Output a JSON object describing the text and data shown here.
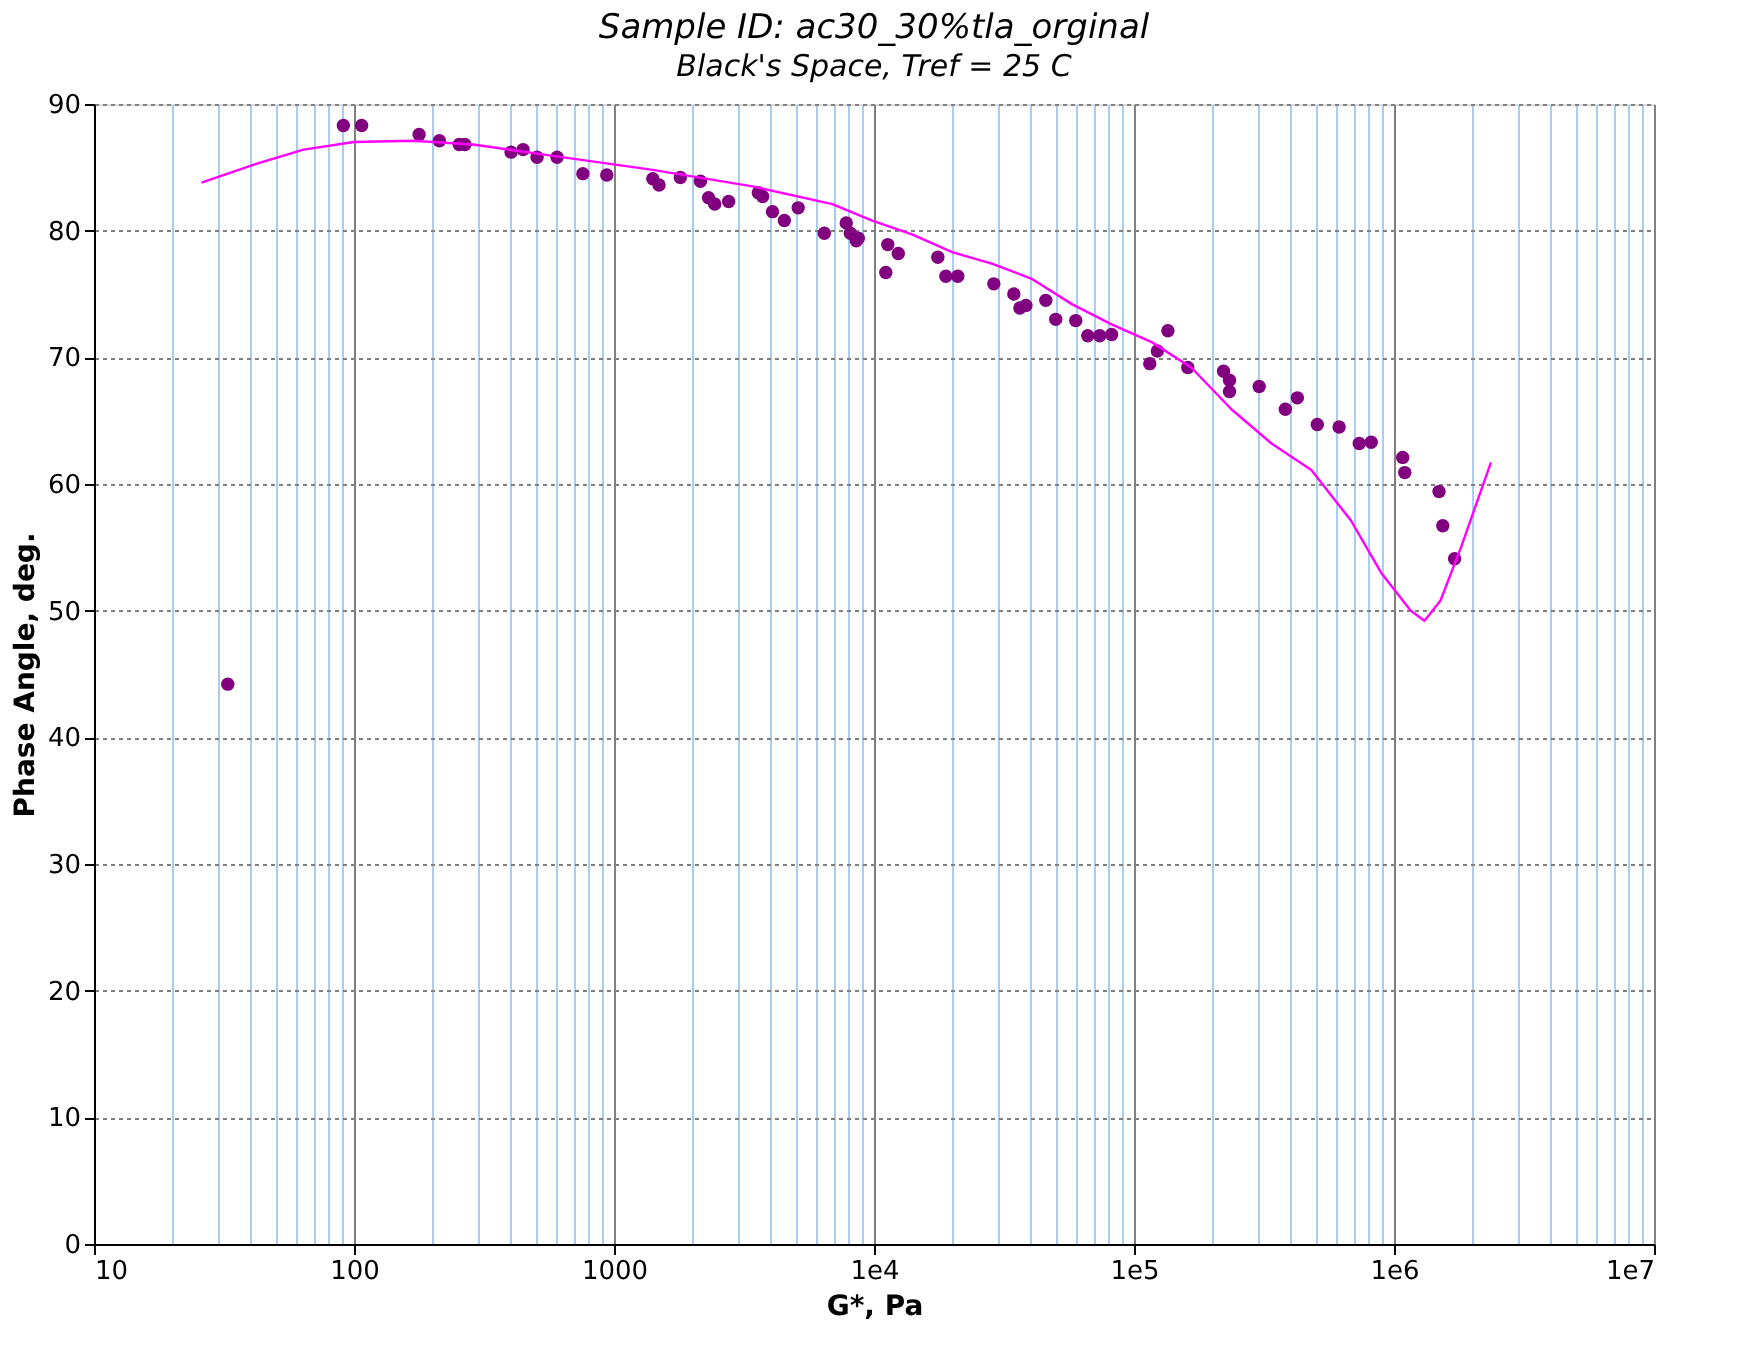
{
  "chart_data": {
    "type": "scatter",
    "title": "Sample ID: ac30_30%tla_orginal",
    "subtitle": "Black's Space, Tref = 25 C",
    "xlabel": "G*, Pa",
    "ylabel": "Phase Angle, deg.",
    "log": "x",
    "grid": true,
    "marker": "circle",
    "xlim": [
      10,
      10000000
    ],
    "ylim": [
      0,
      90
    ],
    "yticks": [
      0,
      10,
      20,
      30,
      40,
      50,
      60,
      70,
      80,
      90
    ],
    "xticks": [
      10,
      {
        "value": 20,
        "label": null
      },
      {
        "value": 30,
        "label": null
      },
      {
        "value": 40,
        "label": null
      },
      {
        "value": 50,
        "label": null
      },
      {
        "value": 60,
        "label": null
      },
      {
        "value": 70,
        "label": null
      },
      {
        "value": 80,
        "label": null
      },
      {
        "value": 90,
        "label": null
      },
      100,
      {
        "value": 200,
        "label": null
      },
      {
        "value": 300,
        "label": null
      },
      {
        "value": 400,
        "label": null
      },
      {
        "value": 500,
        "label": null
      },
      {
        "value": 600,
        "label": null
      },
      {
        "value": 700,
        "label": null
      },
      {
        "value": 800,
        "label": null
      },
      {
        "value": 900,
        "label": null
      },
      1000,
      {
        "value": 2000,
        "label": null
      },
      {
        "value": 3000,
        "label": null
      },
      {
        "value": 4000,
        "label": null
      },
      {
        "value": 5000,
        "label": null
      },
      {
        "value": 6000,
        "label": null
      },
      {
        "value": 7000,
        "label": null
      },
      {
        "value": 8000,
        "label": null
      },
      {
        "value": 9000,
        "label": null
      },
      {
        "value": 10000,
        "label": "1e4"
      },
      {
        "value": 20000,
        "label": null
      },
      {
        "value": 30000,
        "label": null
      },
      {
        "value": 40000,
        "label": null
      },
      {
        "value": 50000,
        "label": null
      },
      {
        "value": 60000,
        "label": null
      },
      {
        "value": 70000,
        "label": null
      },
      {
        "value": 80000,
        "label": null
      },
      {
        "value": 90000,
        "label": null
      },
      {
        "value": 100000,
        "label": "1e5"
      },
      {
        "value": 200000,
        "label": null
      },
      {
        "value": 300000,
        "label": null
      },
      {
        "value": 400000,
        "label": null
      },
      {
        "value": 500000,
        "label": null
      },
      {
        "value": 600000,
        "label": null
      },
      {
        "value": 700000,
        "label": null
      },
      {
        "value": 800000,
        "label": null
      },
      {
        "value": 900000,
        "label": null
      },
      {
        "value": 1000000,
        "label": "1e6"
      },
      {
        "value": 2000000,
        "label": null
      },
      {
        "value": 3000000,
        "label": null
      },
      {
        "value": 4000000,
        "label": null
      },
      {
        "value": 5000000,
        "label": null
      },
      {
        "value": 6000000,
        "label": null
      },
      {
        "value": 7000000,
        "label": null
      },
      {
        "value": 8000000,
        "label": null
      },
      {
        "value": 9000000,
        "label": null
      },
      {
        "value": 10000000,
        "label": "1e7"
      }
    ],
    "series": [
      {
        "color": "#800080",
        "x": [
          32.7,
          91,
          107,
          178,
          213,
          254,
          267,
          402,
          447,
          506,
          604,
          759,
          938,
          1410,
          1490,
          1800,
          2150,
          2310,
          2440,
          2760,
          3590,
          3730,
          4070,
          4520,
          5110,
          6440,
          7820,
          8110,
          8550,
          8700,
          11100,
          11300,
          12400,
          17600,
          18900,
          21000,
          28900,
          34500,
          36400,
          38400,
          45800,
          50000,
          59700,
          66400,
          73800,
          82000,
          115000,
          123000,
          135000,
          161000,
          221000,
          233000,
          233000,
          303000,
          382000,
          425000,
          507000,
          615000,
          735000,
          817000,
          1080000,
          1100000,
          1490000,
          1540000,
          1710000
        ],
        "values": [
          44.2,
          88.3,
          88.3,
          87.6,
          87.1,
          86.8,
          86.8,
          86.2,
          86.4,
          85.8,
          85.8,
          84.5,
          84.4,
          84.1,
          83.6,
          84.2,
          83.9,
          82.6,
          82.1,
          82.3,
          83.0,
          82.7,
          81.5,
          80.8,
          81.8,
          79.8,
          80.6,
          79.8,
          79.2,
          79.4,
          76.7,
          78.9,
          78.2,
          77.9,
          76.4,
          76.4,
          75.8,
          75.0,
          73.9,
          74.1,
          74.5,
          73.0,
          72.9,
          71.7,
          71.7,
          71.8,
          69.5,
          70.5,
          72.1,
          69.2,
          68.9,
          68.2,
          67.3,
          67.7,
          65.9,
          66.8,
          64.7,
          64.5,
          63.2,
          63.3,
          62.1,
          60.9,
          59.4,
          56.7,
          54.1
        ]
      },
      {
        "type": "line",
        "color": "#ff00ff",
        "marker": "none",
        "x": [
          25.9,
          41,
          64,
          100,
          169,
          287,
          582,
          1410,
          3410,
          6920,
          9840,
          14000,
          20000,
          28400,
          40400,
          57700,
          82000,
          117000,
          166000,
          237000,
          338000,
          481000,
          684000,
          892000,
          1160000,
          1310000,
          1510000,
          1810000,
          2360000
        ],
        "values": [
          83.8,
          85.2,
          86.4,
          87.0,
          87.1,
          86.8,
          85.9,
          84.8,
          83.5,
          82.1,
          80.8,
          79.7,
          78.3,
          77.4,
          76.2,
          74.2,
          72.6,
          71.2,
          69.2,
          65.9,
          63.2,
          61.1,
          57.1,
          53.0,
          50.0,
          49.2,
          50.8,
          55.0,
          61.7
        ]
      }
    ]
  }
}
